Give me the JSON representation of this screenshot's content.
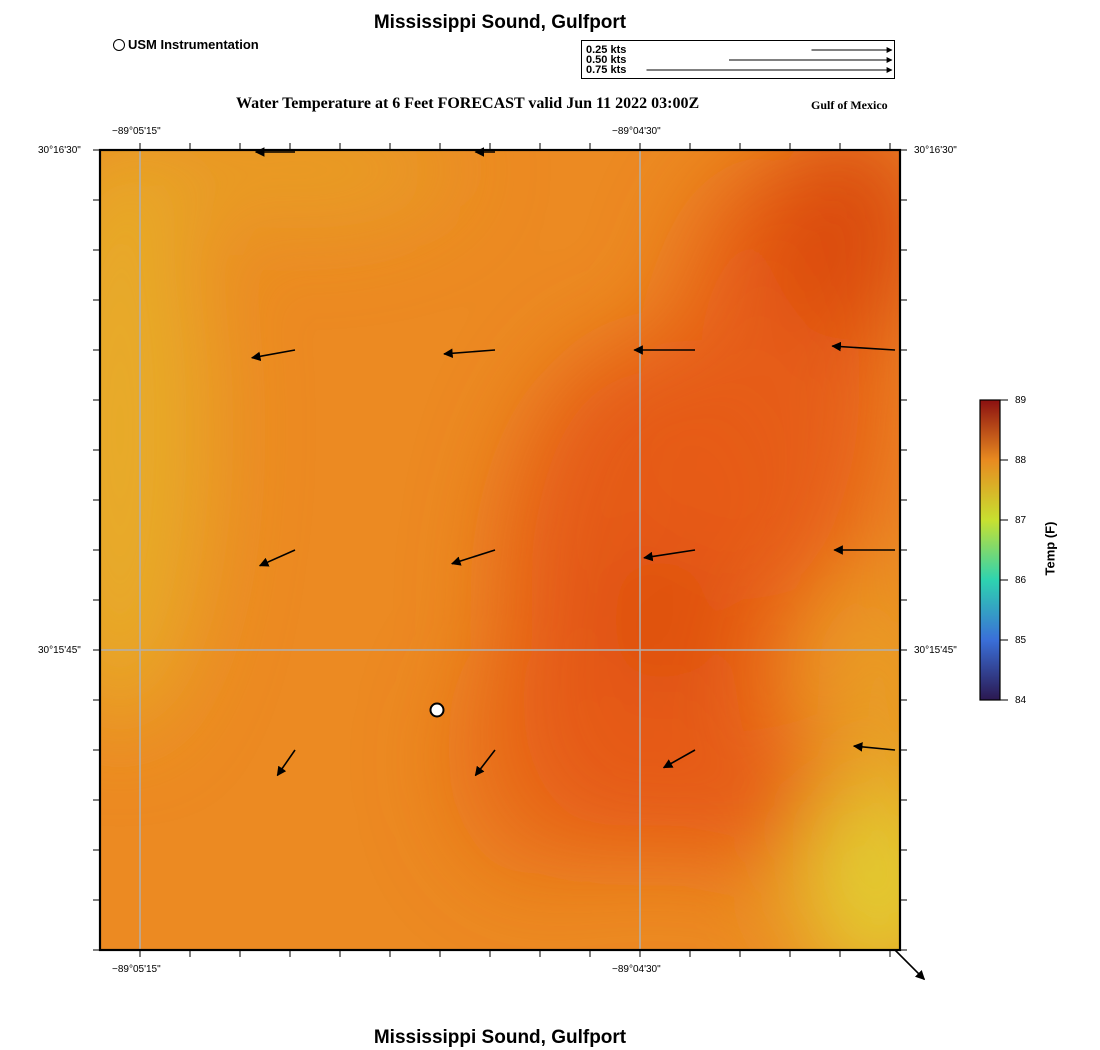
{
  "map": {
    "title": "Mississippi Sound, Gulfport",
    "subtitle": "Water Temperature at 6 Feet FORECAST valid Jun 11 2022 03:00Z",
    "region_label": "Gulf of Mexico",
    "footer_title": "Mississippi Sound, Gulfport"
  },
  "station_legend": {
    "label": "USM Instrumentation",
    "icon": "circle-marker-icon"
  },
  "speed_legend": {
    "entries": [
      {
        "label": "0.25 kts",
        "speed": 0.25
      },
      {
        "label": "0.50 kts",
        "speed": 0.5
      },
      {
        "label": "0.75 kts",
        "speed": 0.75
      }
    ]
  },
  "axes": {
    "lon_labels": [
      "−89°05'15\"",
      "−89°04'30\""
    ],
    "lat_labels": [
      "30°16'30\"",
      "30°15'45\""
    ]
  },
  "colorbar": {
    "title": "Temp (F)",
    "min": 84,
    "max": 89,
    "ticks": [
      84,
      85,
      86,
      87,
      88,
      89
    ],
    "colors": [
      "#2b1850",
      "#3a6fd8",
      "#2ed3b0",
      "#c8e030",
      "#e88a20",
      "#8b1010"
    ]
  },
  "field_colors": {
    "base": "#ec8a22",
    "warm": "#e55a14",
    "hot": "#d9480f",
    "cool": "#e6b02a",
    "coolest": "#e2cc32"
  },
  "current_vectors": [
    {
      "row": 0,
      "col": 0,
      "u": -0.2,
      "v": 0.0
    },
    {
      "row": 0,
      "col": 1,
      "u": -0.1,
      "v": 0.0
    },
    {
      "row": 1,
      "col": 0,
      "u": -0.22,
      "v": -0.04
    },
    {
      "row": 1,
      "col": 1,
      "u": -0.26,
      "v": -0.02
    },
    {
      "row": 1,
      "col": 2,
      "u": -0.31,
      "v": 0.0
    },
    {
      "row": 1,
      "col": 3,
      "u": -0.32,
      "v": 0.02
    },
    {
      "row": 2,
      "col": 0,
      "u": -0.18,
      "v": -0.08
    },
    {
      "row": 2,
      "col": 1,
      "u": -0.22,
      "v": -0.07
    },
    {
      "row": 2,
      "col": 2,
      "u": -0.26,
      "v": -0.04
    },
    {
      "row": 2,
      "col": 3,
      "u": -0.31,
      "v": 0.0
    },
    {
      "row": 3,
      "col": 0,
      "u": -0.09,
      "v": -0.13
    },
    {
      "row": 3,
      "col": 1,
      "u": -0.1,
      "v": -0.13
    },
    {
      "row": 3,
      "col": 2,
      "u": -0.16,
      "v": -0.09
    },
    {
      "row": 3,
      "col": 3,
      "u": -0.21,
      "v": 0.02
    },
    {
      "row": 4,
      "col": 3,
      "u": 0.15,
      "v": -0.15
    }
  ]
}
